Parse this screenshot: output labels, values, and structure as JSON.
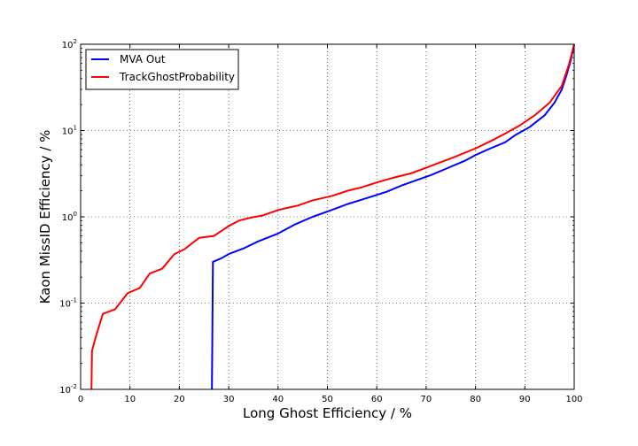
{
  "chart_data": {
    "type": "line",
    "xlabel": "Long Ghost Efficiency / %",
    "ylabel": "Kaon MissID Efficiency / %",
    "xlim": [
      0,
      100
    ],
    "ylim": [
      0.01,
      100
    ],
    "yscale": "log",
    "grid": true,
    "legend_position": "top-left",
    "x_ticks": [
      "0",
      "10",
      "20",
      "30",
      "40",
      "50",
      "60",
      "70",
      "80",
      "90",
      "100"
    ],
    "y_ticks": [
      {
        "base": "10",
        "exp": "-2"
      },
      {
        "base": "10",
        "exp": "-1"
      },
      {
        "base": "10",
        "exp": "0"
      },
      {
        "base": "10",
        "exp": "1"
      },
      {
        "base": "10",
        "exp": "2"
      }
    ],
    "series": [
      {
        "name": "MVA Out",
        "color": "#0000ff",
        "points": [
          [
            26.6,
            0.01
          ],
          [
            26.8,
            0.3
          ],
          [
            28.5,
            0.33
          ],
          [
            30,
            0.37
          ],
          [
            33,
            0.43
          ],
          [
            36,
            0.52
          ],
          [
            40,
            0.64
          ],
          [
            43.5,
            0.82
          ],
          [
            47,
            1.0
          ],
          [
            50,
            1.15
          ],
          [
            54,
            1.4
          ],
          [
            58,
            1.65
          ],
          [
            62,
            1.95
          ],
          [
            65,
            2.3
          ],
          [
            68,
            2.65
          ],
          [
            71,
            3.05
          ],
          [
            74,
            3.6
          ],
          [
            78,
            4.5
          ],
          [
            80,
            5.2
          ],
          [
            83,
            6.2
          ],
          [
            86,
            7.3
          ],
          [
            88,
            8.8
          ],
          [
            91,
            11.0
          ],
          [
            94,
            15.0
          ],
          [
            96,
            21.0
          ],
          [
            97.5,
            30.0
          ],
          [
            98.5,
            45.0
          ],
          [
            99.3,
            65.0
          ],
          [
            100,
            100
          ]
        ]
      },
      {
        "name": "TrackGhostProbability",
        "color": "#ff0000",
        "points": [
          [
            2.2,
            0.01
          ],
          [
            2.3,
            0.028
          ],
          [
            3.3,
            0.045
          ],
          [
            4.5,
            0.075
          ],
          [
            7,
            0.085
          ],
          [
            9.5,
            0.13
          ],
          [
            12,
            0.15
          ],
          [
            14,
            0.22
          ],
          [
            16.5,
            0.25
          ],
          [
            19,
            0.37
          ],
          [
            21,
            0.42
          ],
          [
            24,
            0.57
          ],
          [
            27,
            0.6
          ],
          [
            30,
            0.78
          ],
          [
            32,
            0.9
          ],
          [
            34.5,
            0.98
          ],
          [
            37,
            1.04
          ],
          [
            40,
            1.2
          ],
          [
            44,
            1.35
          ],
          [
            47,
            1.55
          ],
          [
            51,
            1.75
          ],
          [
            54,
            2.0
          ],
          [
            57,
            2.2
          ],
          [
            60,
            2.5
          ],
          [
            63,
            2.8
          ],
          [
            67,
            3.2
          ],
          [
            70,
            3.7
          ],
          [
            73,
            4.3
          ],
          [
            76,
            5.0
          ],
          [
            80,
            6.2
          ],
          [
            83,
            7.5
          ],
          [
            86,
            9.2
          ],
          [
            89,
            11.5
          ],
          [
            92,
            15.0
          ],
          [
            95,
            21.0
          ],
          [
            97.5,
            33.0
          ],
          [
            99,
            60.0
          ],
          [
            100,
            100
          ]
        ]
      }
    ]
  }
}
